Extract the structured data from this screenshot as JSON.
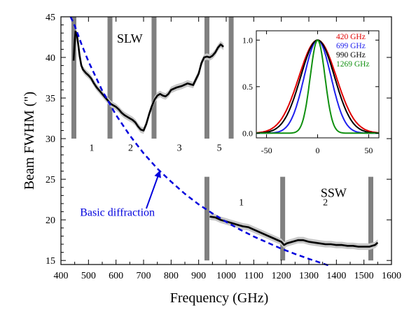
{
  "chart_data": [
    {
      "type": "line",
      "xlabel": "Frequency (GHz)",
      "ylabel": "Beam FWHM (\")",
      "xlim": [
        400,
        1600
      ],
      "ylim": [
        14.5,
        45
      ],
      "x_ticks": [
        400,
        500,
        600,
        700,
        800,
        900,
        1000,
        1100,
        1200,
        1300,
        1400,
        1500,
        1600
      ],
      "y_ticks": [
        15,
        20,
        25,
        30,
        35,
        40,
        45
      ],
      "grid": false,
      "series": [
        {
          "name": "SLW",
          "color": "#000000",
          "band": true,
          "x": [
            446,
            449,
            453,
            458,
            463,
            468,
            474,
            480,
            490,
            500,
            510,
            520,
            530,
            540,
            550,
            560,
            570,
            580,
            590,
            600,
            610,
            620,
            630,
            640,
            650,
            660,
            670,
            680,
            690,
            700,
            710,
            720,
            730,
            740,
            750,
            760,
            770,
            780,
            790,
            800,
            820,
            840,
            860,
            880,
            900,
            910,
            920,
            930,
            940,
            950,
            960,
            970,
            980,
            990
          ],
          "y": [
            39.6,
            41.5,
            43.2,
            42.8,
            41.5,
            40.2,
            39.0,
            38.5,
            38.1,
            37.8,
            37.4,
            36.8,
            36.3,
            35.9,
            35.5,
            35.1,
            34.7,
            34.3,
            34.1,
            33.9,
            33.6,
            33.2,
            32.9,
            32.7,
            32.5,
            32.3,
            32.0,
            31.5,
            31.1,
            31.0,
            31.8,
            33.0,
            34.0,
            34.8,
            35.3,
            35.5,
            35.3,
            35.2,
            35.5,
            36.0,
            36.3,
            36.5,
            36.8,
            36.6,
            38.0,
            39.3,
            40.0,
            40.1,
            40.0,
            40.2,
            40.6,
            41.2,
            41.6,
            41.3
          ]
        },
        {
          "name": "SSW",
          "color": "#000000",
          "band": true,
          "x": [
            940,
            960,
            980,
            1000,
            1020,
            1040,
            1060,
            1080,
            1100,
            1120,
            1140,
            1160,
            1180,
            1200,
            1210,
            1220,
            1240,
            1260,
            1280,
            1300,
            1320,
            1340,
            1360,
            1380,
            1400,
            1420,
            1440,
            1460,
            1480,
            1500,
            1520,
            1530,
            1540,
            1550
          ],
          "y": [
            20.4,
            20.3,
            20.0,
            19.8,
            19.6,
            19.4,
            19.2,
            19.1,
            18.8,
            18.5,
            18.2,
            17.9,
            17.6,
            17.3,
            16.9,
            17.1,
            17.3,
            17.5,
            17.5,
            17.3,
            17.2,
            17.1,
            17.0,
            17.0,
            16.9,
            16.9,
            16.8,
            16.8,
            16.7,
            16.7,
            16.7,
            16.8,
            16.9,
            17.2
          ]
        },
        {
          "name": "Basic diffraction",
          "color": "#0000dd",
          "dashed": true,
          "x": [
            435,
            450,
            475,
            500,
            550,
            600,
            650,
            700,
            750,
            800,
            850,
            900,
            950,
            1000,
            1050,
            1100,
            1150,
            1200,
            1250,
            1300,
            1350,
            1380
          ],
          "y": [
            45.0,
            43.9,
            41.6,
            39.5,
            35.9,
            32.9,
            30.4,
            28.2,
            26.3,
            24.7,
            23.2,
            21.9,
            20.8,
            19.75,
            18.8,
            17.95,
            17.2,
            16.45,
            15.8,
            15.2,
            14.63,
            14.3
          ]
        }
      ],
      "band_markers": [
        {
          "x": 447,
          "ymin": 30,
          "ymax": 45
        },
        {
          "x": 578,
          "ymin": 30,
          "ymax": 45
        },
        {
          "x": 738,
          "ymin": 30,
          "ymax": 45
        },
        {
          "x": 930,
          "ymin": 30,
          "ymax": 45
        },
        {
          "x": 1018,
          "ymin": 30,
          "ymax": 45
        },
        {
          "x": 930,
          "ymin": 15,
          "ymax": 25.3
        },
        {
          "x": 1205,
          "ymin": 15,
          "ymax": 25.3
        },
        {
          "x": 1525,
          "ymin": 15,
          "ymax": 25.3
        }
      ],
      "annotations": [
        {
          "text": "SLW",
          "x": 650,
          "y": 41.8,
          "size": 18,
          "color": "#000000"
        },
        {
          "text": "SSW",
          "x": 1390,
          "y": 22.8,
          "size": 18,
          "color": "#000000"
        },
        {
          "text": "1",
          "x": 512,
          "y": 28.5,
          "size": 14,
          "color": "#000000"
        },
        {
          "text": "2",
          "x": 653,
          "y": 28.5,
          "size": 14,
          "color": "#000000"
        },
        {
          "text": "3",
          "x": 830,
          "y": 28.5,
          "size": 14,
          "color": "#000000"
        },
        {
          "text": "5",
          "x": 975,
          "y": 28.5,
          "size": 14,
          "color": "#000000"
        },
        {
          "text": "1",
          "x": 1055,
          "y": 21.8,
          "size": 14,
          "color": "#000000"
        },
        {
          "text": "2",
          "x": 1360,
          "y": 21.8,
          "size": 14,
          "color": "#000000"
        },
        {
          "text": "Basic diffraction",
          "x": 605,
          "y": 20.5,
          "size": 16,
          "color": "#0000dd"
        }
      ],
      "arrow": {
        "from": [
          710,
          21.4
        ],
        "to": [
          760,
          26.1
        ],
        "color": "#0000dd"
      }
    },
    {
      "type": "line",
      "title": "",
      "xlim": [
        -60,
        60
      ],
      "ylim": [
        -0.05,
        1.1
      ],
      "x_ticks": [
        -50,
        0,
        50
      ],
      "y_ticks": [
        0.0,
        0.5,
        1.0
      ],
      "grid": false,
      "legend_placement": "top-right",
      "series": [
        {
          "name": "420 GHz",
          "color": "#e00000",
          "fwhm": 43
        },
        {
          "name": "699 GHz",
          "color": "#2020ee",
          "fwhm": 31
        },
        {
          "name": "990 GHz",
          "color": "#000000",
          "fwhm": 39
        },
        {
          "name": "1269 GHz",
          "color": "#109010",
          "fwhm": 17
        }
      ]
    }
  ]
}
